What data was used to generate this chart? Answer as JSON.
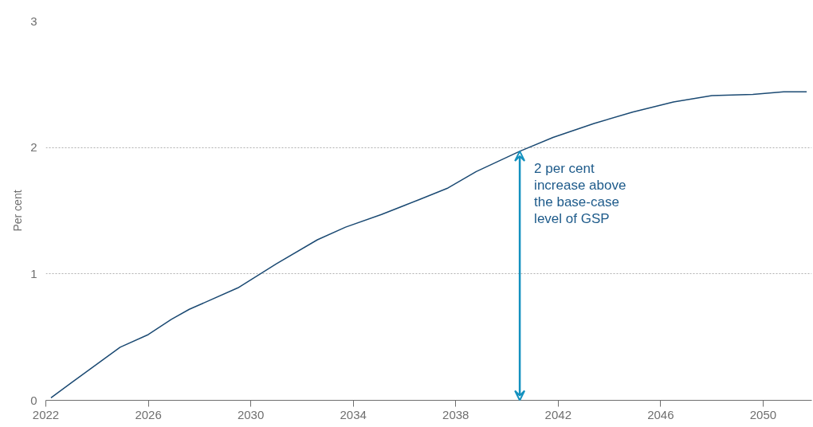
{
  "chart_data": {
    "type": "line",
    "ylabel": "Per cent",
    "x": [
      2022.2,
      2023.0,
      2024.9,
      2026.0,
      2026.9,
      2027.6,
      2029.5,
      2031.0,
      2032.6,
      2033.7,
      2035.1,
      2036.6,
      2037.7,
      2038.8,
      2040.5,
      2041.8,
      2043.4,
      2044.9,
      2046.5,
      2048.0,
      2049.6,
      2050.8,
      2051.7
    ],
    "series": [
      {
        "color": "#1b4a73",
        "values": [
          0.02,
          0.14,
          0.42,
          0.52,
          0.64,
          0.72,
          0.89,
          1.08,
          1.27,
          1.37,
          1.47,
          1.59,
          1.68,
          1.81,
          1.97,
          2.08,
          2.19,
          2.28,
          2.36,
          2.41,
          2.42,
          2.44,
          2.44
        ]
      }
    ],
    "xlim": [
      2022,
      2051.9
    ],
    "xticks": [
      2022,
      2026,
      2030,
      2034,
      2038,
      2042,
      2046,
      2050
    ],
    "ylim": [
      0,
      3
    ],
    "yticks": [
      0,
      1,
      2,
      3
    ],
    "grid": "y",
    "line_style": "solid",
    "annotations": [
      {
        "text": "2 per cent\nincrease above\nthe base-case\nlevel of GSP",
        "x": 2040.5,
        "y": 1.97
      }
    ]
  }
}
